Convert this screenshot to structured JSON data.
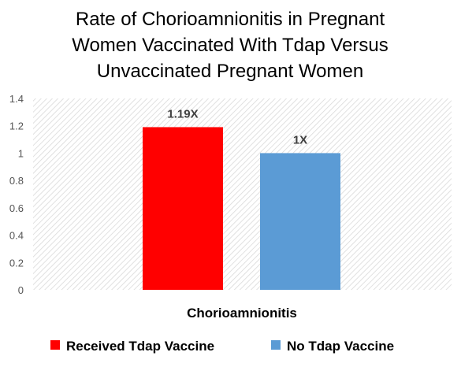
{
  "chart_data": {
    "type": "bar",
    "title_lines": [
      "Rate of Chorioamnionitis in Pregnant",
      "Women Vaccinated With Tdap Versus",
      "Unvaccinated Pregnant Women"
    ],
    "categories": [
      "Chorioamnionitis"
    ],
    "series": [
      {
        "name": "Received Tdap Vaccine",
        "values": [
          1.19
        ],
        "data_label": "1.19X",
        "color": "#ff0000"
      },
      {
        "name": "No Tdap Vaccine",
        "values": [
          1.0
        ],
        "data_label": "1X",
        "color": "#5b9bd5"
      }
    ],
    "yticks": [
      "0",
      "0.2",
      "0.4",
      "0.6",
      "0.8",
      "1",
      "1.2",
      "1.4"
    ],
    "ylim": [
      0,
      1.4
    ],
    "grid": false,
    "plot_background": "hatched",
    "legend_position": "bottom"
  }
}
